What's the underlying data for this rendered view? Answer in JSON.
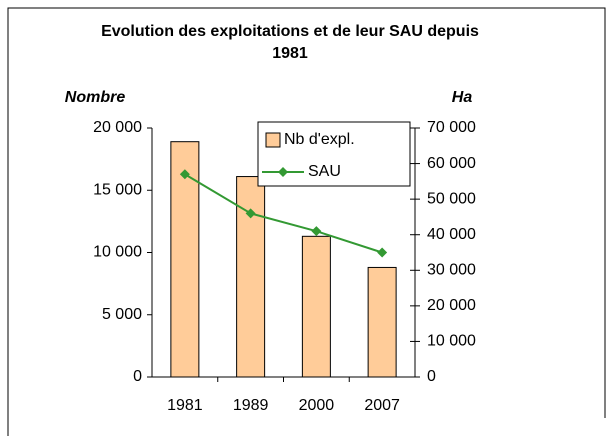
{
  "chart_data": {
    "type": "bar_line",
    "title": "Evolution des exploitations et de leur SAU depuis",
    "title_line2": "1981",
    "ylabel": "Nombre",
    "y2label": "Ha",
    "categories": [
      "1981",
      "1989",
      "2000",
      "2007"
    ],
    "series": [
      {
        "name": "Nb d'expl.",
        "type": "bar",
        "color": "#ffcc99",
        "values": [
          18900,
          16100,
          11300,
          8800
        ]
      },
      {
        "name": "SAU",
        "type": "line",
        "axis": "y2",
        "color": "#339933",
        "values": [
          57000,
          46000,
          41000,
          35000
        ]
      }
    ],
    "ylim": [
      0,
      20000
    ],
    "yticks": [
      0,
      {
        "value": 5000,
        "label": "5 000"
      },
      {
        "value": 10000,
        "label": "10 000"
      },
      {
        "value": 15000,
        "label": "15 000"
      },
      {
        "value": 20000,
        "label": "20 000"
      }
    ],
    "y2lim": [
      0,
      70000
    ],
    "y2ticks": [
      0,
      {
        "value": 10000,
        "label": "10 000"
      },
      {
        "value": 20000,
        "label": "20 000"
      },
      {
        "value": 30000,
        "label": "30 000"
      },
      {
        "value": 40000,
        "label": "40 000"
      },
      {
        "value": 50000,
        "label": "50 000"
      },
      {
        "value": 60000,
        "label": "60 000"
      },
      {
        "value": 70000,
        "label": "70 000"
      }
    ],
    "legend": "top-right"
  }
}
